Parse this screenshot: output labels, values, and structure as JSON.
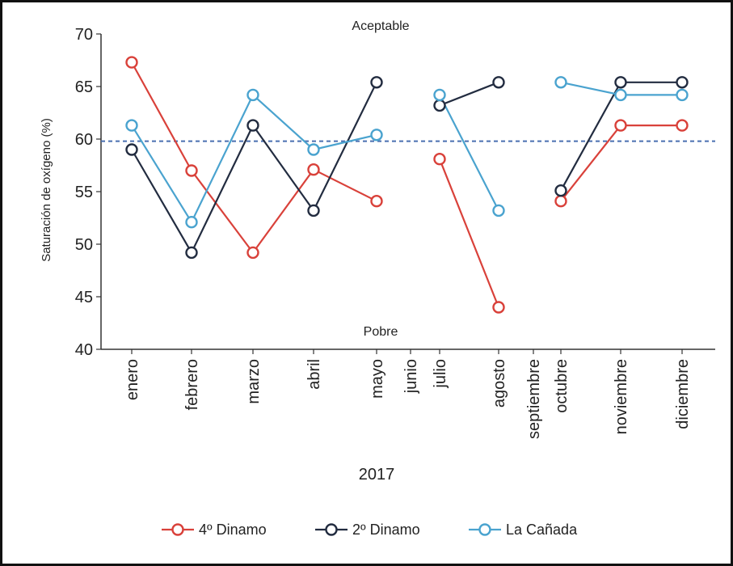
{
  "chart_data": {
    "type": "line",
    "categories": [
      "enero",
      "febrero",
      "marzo",
      "abril",
      "mayo",
      "junio",
      "julio",
      "agosto",
      "septiembre",
      "octubre",
      "noviembre",
      "diciembre"
    ],
    "series": [
      {
        "name": "4º Dinamo",
        "color": "#d9413a",
        "values": [
          67.3,
          57.0,
          49.2,
          57.1,
          54.1,
          null,
          58.1,
          44.0,
          null,
          54.1,
          61.3,
          61.3
        ]
      },
      {
        "name": "2º Dinamo",
        "color": "#222c40",
        "values": [
          59.0,
          49.2,
          61.3,
          53.2,
          65.4,
          null,
          63.2,
          65.4,
          null,
          55.1,
          65.4,
          65.4
        ]
      },
      {
        "name": "La Cañada",
        "color": "#4aa3cf",
        "values": [
          61.3,
          52.1,
          64.2,
          59.0,
          60.4,
          null,
          64.2,
          53.2,
          null,
          65.4,
          64.2,
          64.2
        ]
      }
    ],
    "ylabel": "Saturación de oxígeno (%)",
    "xlabel": "2017",
    "ylim": [
      40,
      70
    ],
    "yticks": [
      40,
      45,
      50,
      55,
      60,
      65,
      70
    ],
    "reference_line": {
      "value": 59.8,
      "style": "dashed",
      "color": "#4a6fb0"
    },
    "annotations": {
      "top": "Aceptable",
      "bottom": "Pobre"
    },
    "grid": false,
    "legend_position": "bottom"
  }
}
